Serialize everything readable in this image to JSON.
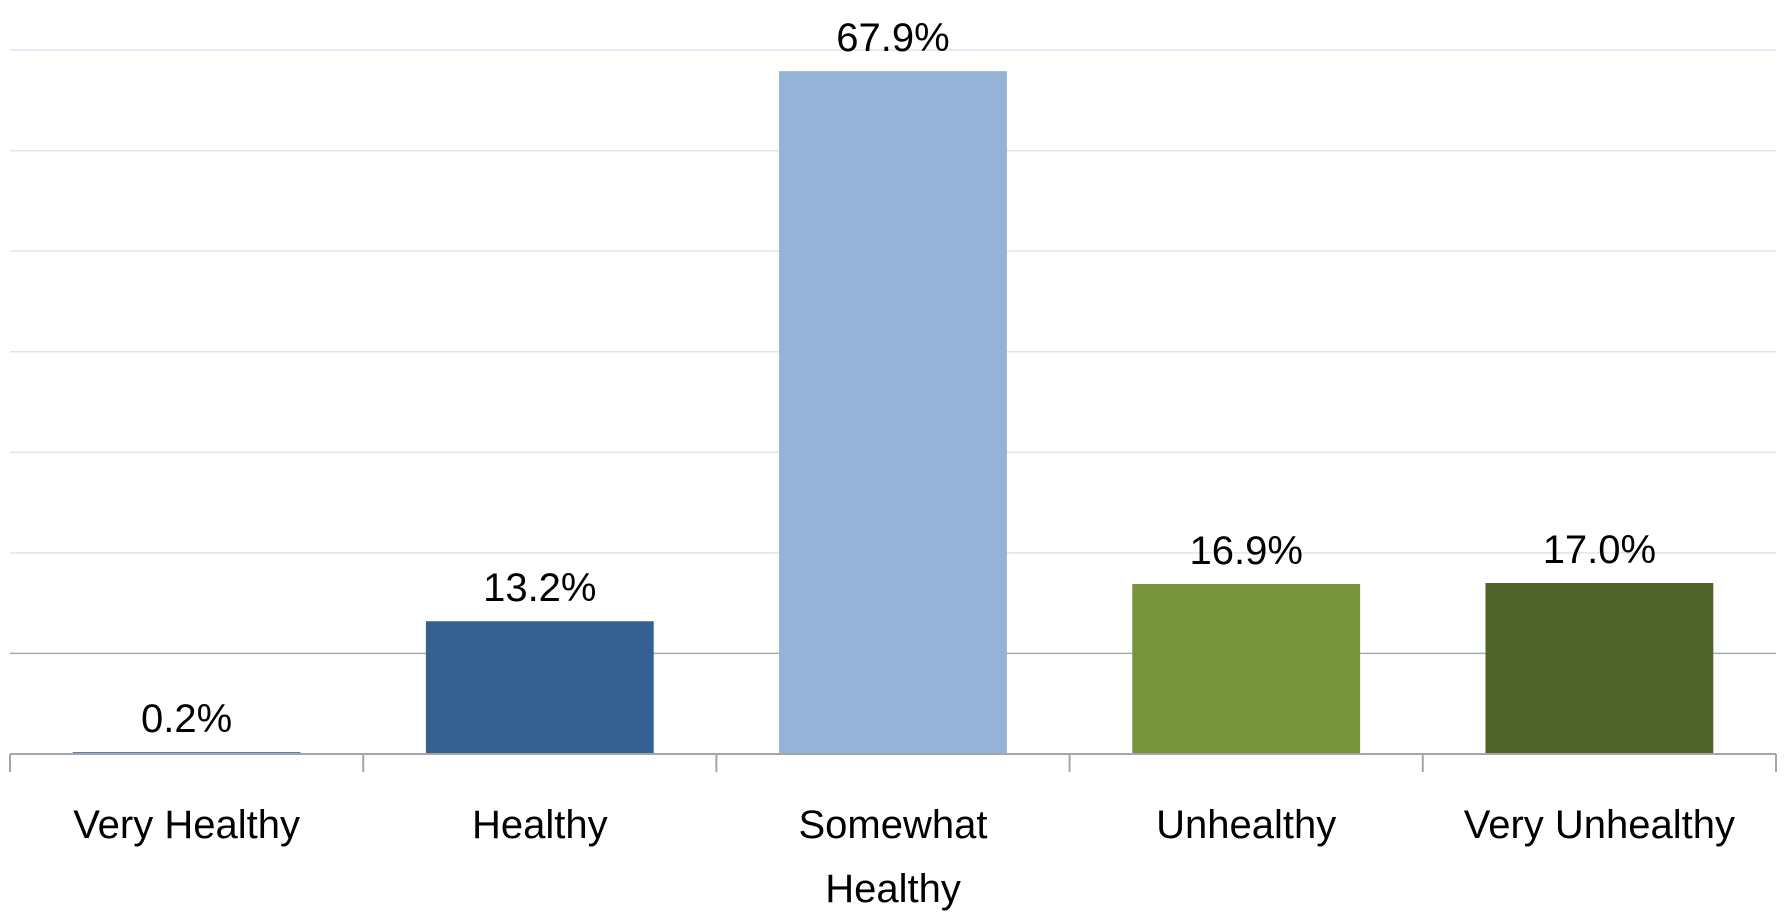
{
  "chart_data": {
    "type": "bar",
    "categories": [
      [
        "Very Healthy"
      ],
      [
        "Healthy"
      ],
      [
        "Somewhat",
        "Healthy"
      ],
      [
        "Unhealthy"
      ],
      [
        "Very Unhealthy"
      ]
    ],
    "values": [
      0.2,
      13.2,
      67.9,
      16.9,
      17.0
    ],
    "value_labels": [
      "0.2%",
      "13.2%",
      "67.9%",
      "16.9%",
      "17.0%"
    ],
    "colors": [
      "#4f81bd",
      "#376092",
      "#95b3d7",
      "#77933c",
      "#4f6228"
    ],
    "ylim": [
      0,
      70
    ],
    "y_gridline_step": 10,
    "grid": true,
    "title": "",
    "xlabel": "",
    "ylabel": ""
  }
}
